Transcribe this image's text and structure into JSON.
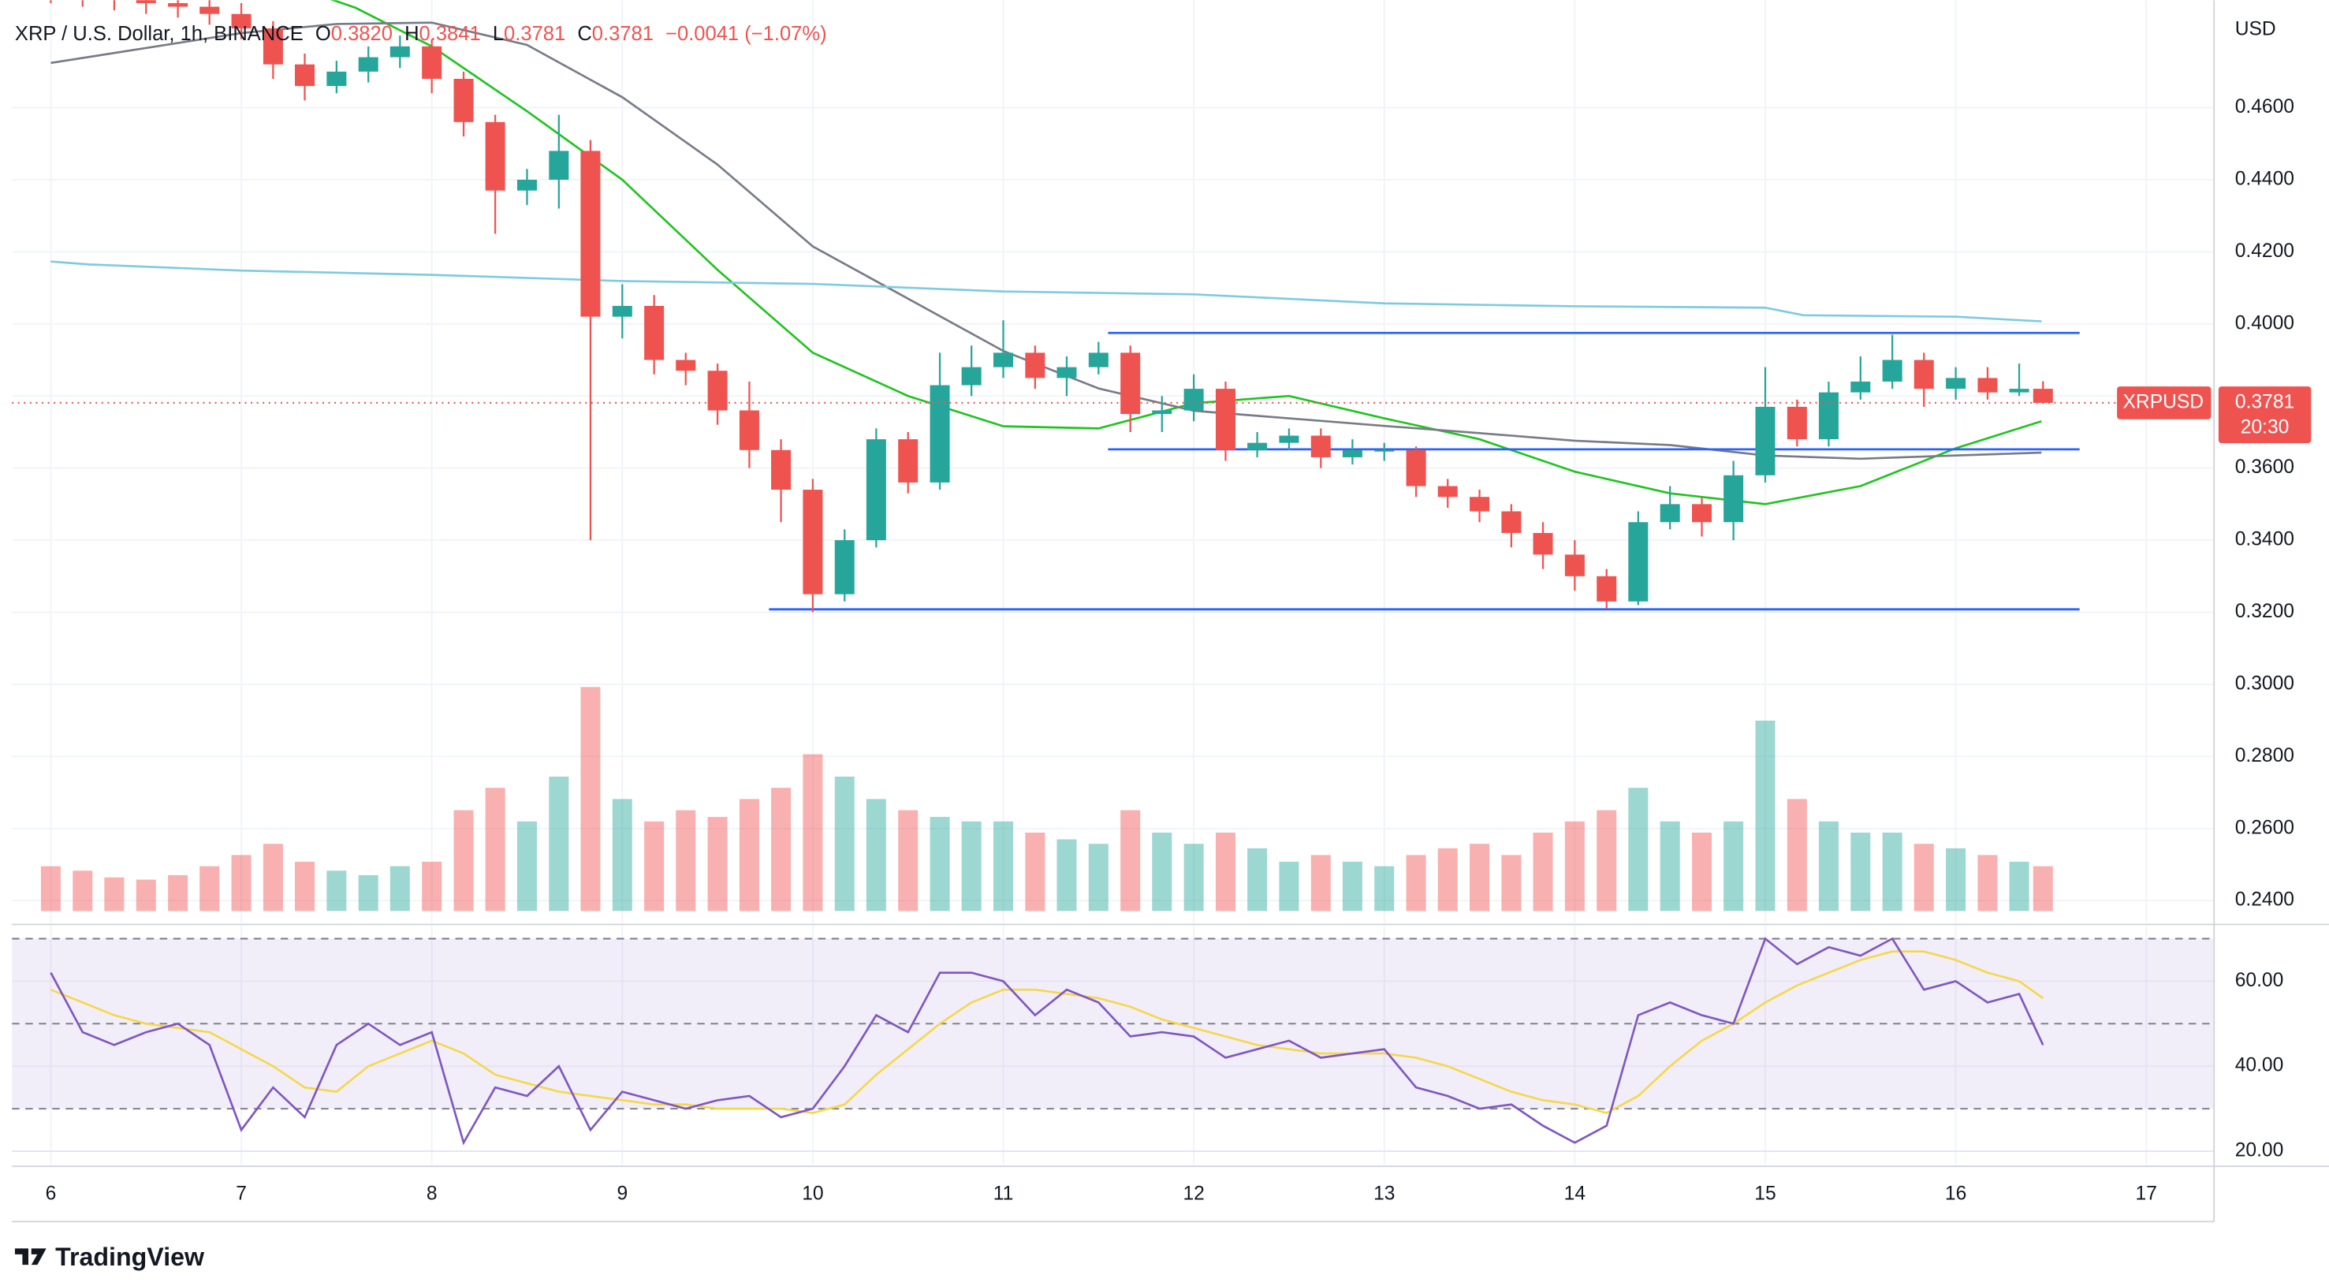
{
  "header": {
    "symbol": "XRP / U.S. Dollar, 1h, BINANCE",
    "ohlc": [
      {
        "label": "O",
        "value": "0.3820"
      },
      {
        "label": "H",
        "value": "0.3841"
      },
      {
        "label": "L",
        "value": "0.3781"
      },
      {
        "label": "C",
        "value": "0.3781"
      }
    ],
    "change": "−0.0041 (−1.07%)"
  },
  "chart_data": {
    "type": "candlestick",
    "x": [
      6,
      6.167,
      6.333,
      6.5,
      6.667,
      6.833,
      7,
      7.167,
      7.333,
      7.5,
      7.667,
      7.833,
      8,
      8.167,
      8.333,
      8.5,
      8.667,
      8.833,
      9,
      9.167,
      9.333,
      9.5,
      9.667,
      9.833,
      10,
      10.167,
      10.333,
      10.5,
      10.667,
      10.833,
      11,
      11.167,
      11.333,
      11.5,
      11.667,
      11.833,
      12,
      12.167,
      12.333,
      12.5,
      12.667,
      12.833,
      13,
      13.167,
      13.333,
      13.5,
      13.667,
      13.833,
      14,
      14.167,
      14.333,
      14.5,
      14.667,
      14.833,
      15,
      15.167,
      15.333,
      15.5,
      15.667,
      15.833,
      16,
      16.167,
      16.333,
      16.458
    ],
    "open": [
      0.493,
      0.492,
      0.491,
      0.49,
      0.489,
      0.488,
      0.486,
      0.482,
      0.472,
      0.466,
      0.47,
      0.474,
      0.477,
      0.468,
      0.456,
      0.437,
      0.44,
      0.448,
      0.402,
      0.405,
      0.39,
      0.387,
      0.376,
      0.365,
      0.354,
      0.325,
      0.34,
      0.368,
      0.356,
      0.383,
      0.388,
      0.392,
      0.385,
      0.388,
      0.392,
      0.375,
      0.376,
      0.382,
      0.365,
      0.367,
      0.369,
      0.363,
      0.365,
      0.365,
      0.355,
      0.352,
      0.348,
      0.342,
      0.336,
      0.33,
      0.323,
      0.345,
      0.35,
      0.345,
      0.358,
      0.377,
      0.368,
      0.381,
      0.384,
      0.39,
      0.382,
      0.385,
      0.381,
      0.382
    ],
    "high": [
      0.495,
      0.494,
      0.493,
      0.492,
      0.491,
      0.49,
      0.489,
      0.484,
      0.475,
      0.473,
      0.477,
      0.48,
      0.479,
      0.47,
      0.458,
      0.443,
      0.458,
      0.451,
      0.411,
      0.408,
      0.392,
      0.389,
      0.384,
      0.368,
      0.357,
      0.343,
      0.371,
      0.37,
      0.392,
      0.394,
      0.401,
      0.394,
      0.391,
      0.395,
      0.394,
      0.38,
      0.386,
      0.384,
      0.37,
      0.371,
      0.371,
      0.368,
      0.367,
      0.366,
      0.357,
      0.354,
      0.35,
      0.345,
      0.34,
      0.332,
      0.348,
      0.355,
      0.352,
      0.362,
      0.388,
      0.379,
      0.384,
      0.391,
      0.397,
      0.392,
      0.388,
      0.388,
      0.389,
      0.3841
    ],
    "low": [
      0.489,
      0.488,
      0.487,
      0.486,
      0.485,
      0.483,
      0.479,
      0.468,
      0.462,
      0.464,
      0.467,
      0.471,
      0.464,
      0.452,
      0.425,
      0.433,
      0.432,
      0.34,
      0.396,
      0.386,
      0.383,
      0.372,
      0.36,
      0.345,
      0.32,
      0.323,
      0.338,
      0.353,
      0.354,
      0.38,
      0.385,
      0.382,
      0.38,
      0.386,
      0.37,
      0.37,
      0.373,
      0.362,
      0.363,
      0.365,
      0.36,
      0.361,
      0.362,
      0.352,
      0.349,
      0.345,
      0.338,
      0.332,
      0.326,
      0.321,
      0.322,
      0.343,
      0.341,
      0.34,
      0.356,
      0.366,
      0.366,
      0.379,
      0.382,
      0.377,
      0.379,
      0.379,
      0.38,
      0.3781
    ],
    "close": [
      0.492,
      0.491,
      0.49,
      0.489,
      0.488,
      0.486,
      0.482,
      0.472,
      0.466,
      0.47,
      0.474,
      0.477,
      0.468,
      0.456,
      0.437,
      0.44,
      0.448,
      0.402,
      0.405,
      0.39,
      0.387,
      0.376,
      0.365,
      0.354,
      0.325,
      0.34,
      0.368,
      0.356,
      0.383,
      0.388,
      0.392,
      0.385,
      0.388,
      0.392,
      0.375,
      0.376,
      0.382,
      0.365,
      0.367,
      0.369,
      0.363,
      0.365,
      0.365,
      0.355,
      0.352,
      0.348,
      0.342,
      0.336,
      0.33,
      0.323,
      0.345,
      0.35,
      0.345,
      0.358,
      0.377,
      0.368,
      0.381,
      0.384,
      0.39,
      0.382,
      0.385,
      0.381,
      0.382,
      0.3781
    ],
    "volume": [
      20,
      18,
      15,
      14,
      16,
      20,
      25,
      30,
      22,
      18,
      16,
      20,
      22,
      45,
      55,
      40,
      60,
      100,
      50,
      40,
      45,
      42,
      50,
      55,
      70,
      60,
      50,
      45,
      42,
      40,
      40,
      35,
      32,
      30,
      45,
      35,
      30,
      35,
      28,
      22,
      25,
      22,
      20,
      25,
      28,
      30,
      25,
      35,
      40,
      45,
      55,
      40,
      35,
      40,
      85,
      50,
      40,
      35,
      35,
      30,
      28,
      25,
      22,
      20
    ],
    "up_color": "#26a69a",
    "down_color": "#ef5350",
    "xlim": [
      5.796,
      17.348
    ],
    "xticks": [
      6,
      7,
      8,
      9,
      10,
      11,
      12,
      13,
      14,
      15,
      16,
      17
    ],
    "ylim": [
      0.2338,
      0.4898
    ],
    "yticks": [
      {
        "value": 0.24,
        "label": "0.2400"
      },
      {
        "value": 0.26,
        "label": "0.2600"
      },
      {
        "value": 0.28,
        "label": "0.2800"
      },
      {
        "value": 0.3,
        "label": "0.3000"
      },
      {
        "value": 0.32,
        "label": "0.3200"
      },
      {
        "value": 0.34,
        "label": "0.3400"
      },
      {
        "value": 0.36,
        "label": "0.3600"
      },
      {
        "value": 0.38,
        "label": "0.3800"
      },
      {
        "value": 0.4,
        "label": "0.4000"
      },
      {
        "value": 0.42,
        "label": "0.4200"
      },
      {
        "value": 0.44,
        "label": "0.4400"
      },
      {
        "value": 0.46,
        "label": "0.4600"
      }
    ],
    "y_label": "USD",
    "grid": true,
    "moving_averages": [
      {
        "color": "#1fc41f",
        "x": [
          7.2,
          7.6,
          8,
          8.5,
          9,
          9.5,
          10,
          10.5,
          11,
          11.5,
          12,
          12.5,
          13,
          13.5,
          14,
          14.5,
          15,
          15.5,
          16,
          16.45
        ],
        "values": [
          0.495,
          0.4877,
          0.477,
          0.459,
          0.44,
          0.415,
          0.392,
          0.38,
          0.3716,
          0.371,
          0.378,
          0.38,
          0.3738,
          0.368,
          0.359,
          0.353,
          0.35,
          0.355,
          0.3655,
          0.373
        ]
      },
      {
        "color": "#787b86",
        "x": [
          6,
          7,
          7.5,
          8,
          8.5,
          9,
          9.5,
          10,
          10.5,
          11,
          11.5,
          12,
          12.5,
          13,
          13.5,
          14,
          14.5,
          15,
          15.5,
          16,
          16.45
        ],
        "values": [
          0.4724,
          0.4807,
          0.4832,
          0.4836,
          0.4774,
          0.4629,
          0.4442,
          0.4215,
          0.407,
          0.3925,
          0.3821,
          0.3759,
          0.3738,
          0.3717,
          0.3697,
          0.3676,
          0.3664,
          0.3635,
          0.3626,
          0.3635,
          0.3643
        ]
      },
      {
        "color": "#7ecbe0",
        "x": [
          6,
          6.2,
          7,
          8,
          9,
          10,
          11,
          12,
          13,
          14,
          15,
          15.2,
          16,
          16.45
        ],
        "values": [
          0.4173,
          0.4165,
          0.4148,
          0.4136,
          0.4119,
          0.4111,
          0.409,
          0.4082,
          0.4057,
          0.4049,
          0.4045,
          0.4024,
          0.402,
          0.4007
        ]
      }
    ],
    "levels": [
      {
        "value": 0.3975,
        "x": [
          11.55,
          16.65
        ],
        "color": "#2962ff"
      },
      {
        "value": 0.3652,
        "x": [
          11.55,
          16.65
        ],
        "color": "#2962ff"
      },
      {
        "value": 0.3208,
        "x": [
          9.77,
          16.65
        ],
        "color": "#2962ff"
      }
    ],
    "last_price": {
      "value": 0.3781,
      "label": "0.3781",
      "symbol": "XRPUSD",
      "countdown": "20:30",
      "color": "#ef5350"
    },
    "rsi": {
      "values": [
        62,
        48,
        45,
        48,
        50,
        45,
        25,
        35,
        28,
        45,
        50,
        45,
        48,
        22,
        35,
        33,
        40,
        25,
        34,
        32,
        30,
        32,
        33,
        28,
        30,
        40,
        52,
        48,
        62,
        62,
        60,
        52,
        58,
        55,
        47,
        48,
        47,
        42,
        44,
        46,
        42,
        43,
        44,
        35,
        33,
        30,
        31,
        26,
        22,
        26,
        52,
        55,
        52,
        50,
        70,
        64,
        68,
        66,
        70,
        58,
        60,
        55,
        57,
        45
      ],
      "ma": [
        58,
        55,
        52,
        50,
        49,
        48,
        44,
        40,
        35,
        34,
        40,
        43,
        46,
        43,
        38,
        36,
        34,
        33,
        32,
        31,
        31,
        30,
        30,
        30,
        29,
        31,
        38,
        44,
        50,
        55,
        58,
        58,
        57,
        56,
        54,
        51,
        49,
        47,
        45,
        44,
        43,
        43,
        43,
        42,
        40,
        37,
        34,
        32,
        31,
        29,
        33,
        40,
        46,
        50,
        55,
        59,
        62,
        65,
        67,
        67,
        65,
        62,
        60,
        56
      ],
      "color": "#7e57c2",
      "ma_color": "#f5d84a",
      "band_color": "#7e57c2",
      "ylim": [
        16.8,
        73
      ],
      "levels": [
        30,
        50,
        70
      ],
      "yticks": [
        {
          "value": 20,
          "label": "20.00"
        },
        {
          "value": 40,
          "label": "40.00"
        },
        {
          "value": 60,
          "label": "60.00"
        }
      ]
    }
  },
  "footer": {
    "brand": "TradingView"
  }
}
